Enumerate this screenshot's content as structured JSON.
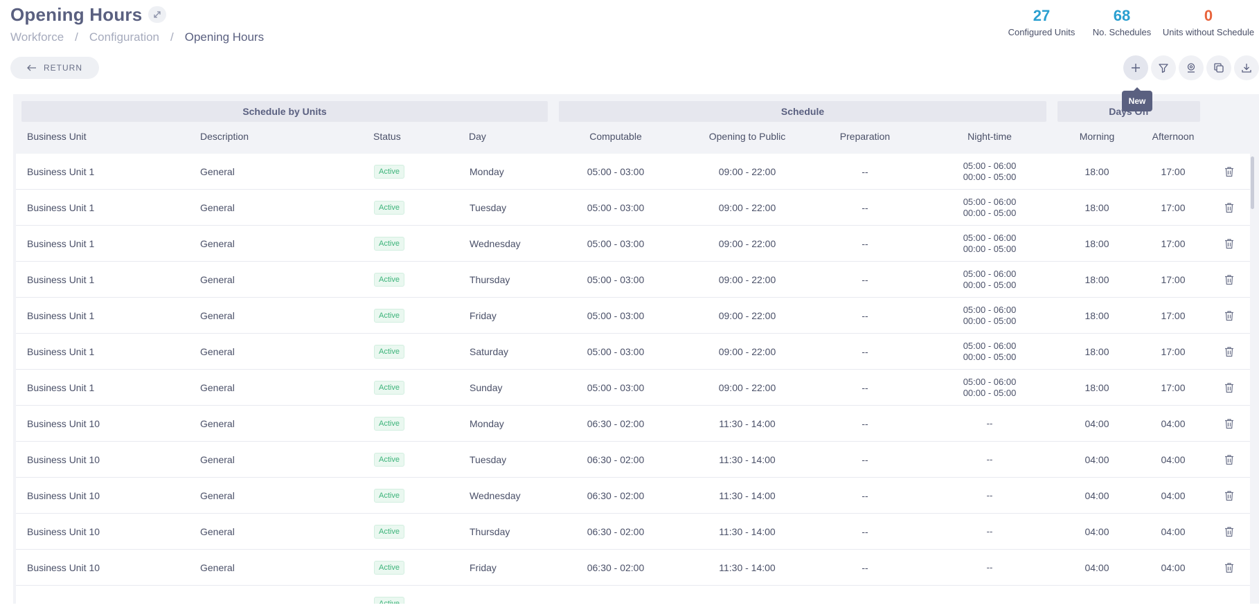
{
  "header": {
    "title": "Opening Hours",
    "breadcrumb": [
      "Workforce",
      "Configuration",
      "Opening Hours"
    ],
    "return_label": "RETURN"
  },
  "stats": [
    {
      "value": "27",
      "label": "Configured Units",
      "color": "#2a9fd0"
    },
    {
      "value": "68",
      "label": "No. Schedules",
      "color": "#2a9fd0"
    },
    {
      "value": "0",
      "label": "Units without Schedule",
      "color": "#e8643c"
    }
  ],
  "toolbar": {
    "new_tooltip": "New",
    "icons": [
      "plus-icon",
      "filter-icon",
      "location-icon",
      "copy-icon",
      "download-icon"
    ]
  },
  "table": {
    "groups": [
      "Schedule by Units",
      "Schedule",
      "Days Off"
    ],
    "columns": [
      "Business Unit",
      "Description",
      "Status",
      "Day",
      "Computable",
      "Opening to Public",
      "Preparation",
      "Night-time",
      "Morning",
      "Afternoon"
    ],
    "rows": [
      {
        "unit": "Business Unit 1",
        "desc": "General",
        "status": "Active",
        "day": "Monday",
        "computable": "05:00 - 03:00",
        "opening": "09:00 - 22:00",
        "prep": "--",
        "night1": "05:00 - 06:00",
        "night2": "00:00 - 05:00",
        "morning": "18:00",
        "afternoon": "17:00"
      },
      {
        "unit": "Business Unit 1",
        "desc": "General",
        "status": "Active",
        "day": "Tuesday",
        "computable": "05:00 - 03:00",
        "opening": "09:00 - 22:00",
        "prep": "--",
        "night1": "05:00 - 06:00",
        "night2": "00:00 - 05:00",
        "morning": "18:00",
        "afternoon": "17:00"
      },
      {
        "unit": "Business Unit 1",
        "desc": "General",
        "status": "Active",
        "day": "Wednesday",
        "computable": "05:00 - 03:00",
        "opening": "09:00 - 22:00",
        "prep": "--",
        "night1": "05:00 - 06:00",
        "night2": "00:00 - 05:00",
        "morning": "18:00",
        "afternoon": "17:00"
      },
      {
        "unit": "Business Unit 1",
        "desc": "General",
        "status": "Active",
        "day": "Thursday",
        "computable": "05:00 - 03:00",
        "opening": "09:00 - 22:00",
        "prep": "--",
        "night1": "05:00 - 06:00",
        "night2": "00:00 - 05:00",
        "morning": "18:00",
        "afternoon": "17:00"
      },
      {
        "unit": "Business Unit 1",
        "desc": "General",
        "status": "Active",
        "day": "Friday",
        "computable": "05:00 - 03:00",
        "opening": "09:00 - 22:00",
        "prep": "--",
        "night1": "05:00 - 06:00",
        "night2": "00:00 - 05:00",
        "morning": "18:00",
        "afternoon": "17:00"
      },
      {
        "unit": "Business Unit 1",
        "desc": "General",
        "status": "Active",
        "day": "Saturday",
        "computable": "05:00 - 03:00",
        "opening": "09:00 - 22:00",
        "prep": "--",
        "night1": "05:00 - 06:00",
        "night2": "00:00 - 05:00",
        "morning": "18:00",
        "afternoon": "17:00"
      },
      {
        "unit": "Business Unit 1",
        "desc": "General",
        "status": "Active",
        "day": "Sunday",
        "computable": "05:00 - 03:00",
        "opening": "09:00 - 22:00",
        "prep": "--",
        "night1": "05:00 - 06:00",
        "night2": "00:00 - 05:00",
        "morning": "18:00",
        "afternoon": "17:00"
      },
      {
        "unit": "Business Unit 10",
        "desc": "General",
        "status": "Active",
        "day": "Monday",
        "computable": "06:30 - 02:00",
        "opening": "11:30 - 14:00",
        "prep": "--",
        "night1": "--",
        "night2": "",
        "morning": "04:00",
        "afternoon": "04:00"
      },
      {
        "unit": "Business Unit 10",
        "desc": "General",
        "status": "Active",
        "day": "Tuesday",
        "computable": "06:30 - 02:00",
        "opening": "11:30 - 14:00",
        "prep": "--",
        "night1": "--",
        "night2": "",
        "morning": "04:00",
        "afternoon": "04:00"
      },
      {
        "unit": "Business Unit 10",
        "desc": "General",
        "status": "Active",
        "day": "Wednesday",
        "computable": "06:30 - 02:00",
        "opening": "11:30 - 14:00",
        "prep": "--",
        "night1": "--",
        "night2": "",
        "morning": "04:00",
        "afternoon": "04:00"
      },
      {
        "unit": "Business Unit 10",
        "desc": "General",
        "status": "Active",
        "day": "Thursday",
        "computable": "06:30 - 02:00",
        "opening": "11:30 - 14:00",
        "prep": "--",
        "night1": "--",
        "night2": "",
        "morning": "04:00",
        "afternoon": "04:00"
      },
      {
        "unit": "Business Unit 10",
        "desc": "General",
        "status": "Active",
        "day": "Friday",
        "computable": "06:30 - 02:00",
        "opening": "11:30 - 14:00",
        "prep": "--",
        "night1": "--",
        "night2": "",
        "morning": "04:00",
        "afternoon": "04:00"
      },
      {
        "unit": "",
        "desc": "",
        "status": "Active",
        "day": "",
        "computable": "",
        "opening": "",
        "prep": "",
        "night1": "",
        "night2": "",
        "morning": "",
        "afternoon": ""
      }
    ]
  }
}
